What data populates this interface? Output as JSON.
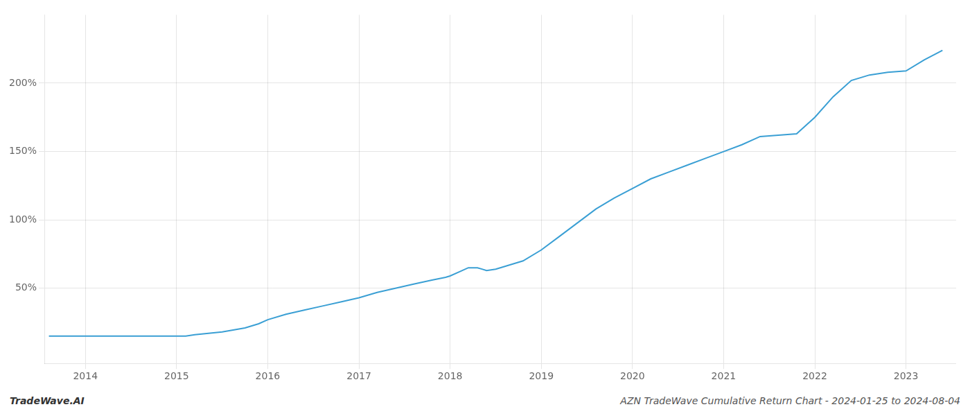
{
  "chart_data": {
    "type": "line",
    "annotations": [
      "TradeWave.AI",
      "AZN TradeWave Cumulative Return Chart - 2024-01-25 to 2024-08-04"
    ],
    "x": [
      2013.6,
      2013.7,
      2013.85,
      2014.0,
      2014.2,
      2014.5,
      2014.75,
      2015.0,
      2015.1,
      2015.2,
      2015.5,
      2015.75,
      2015.9,
      2016.0,
      2016.2,
      2016.4,
      2016.6,
      2016.8,
      2017.0,
      2017.2,
      2017.4,
      2017.6,
      2017.8,
      2017.95,
      2018.0,
      2018.1,
      2018.2,
      2018.3,
      2018.35,
      2018.4,
      2018.5,
      2018.6,
      2018.7,
      2018.8,
      2019.0,
      2019.2,
      2019.4,
      2019.6,
      2019.8,
      2020.0,
      2020.2,
      2020.4,
      2020.6,
      2020.8,
      2021.0,
      2021.2,
      2021.4,
      2021.6,
      2021.8,
      2022.0,
      2022.2,
      2022.4,
      2022.6,
      2022.8,
      2023.0,
      2023.2,
      2023.4
    ],
    "values": [
      15,
      15,
      15,
      15,
      15,
      15,
      15,
      15,
      15,
      16,
      18,
      21,
      24,
      27,
      31,
      34,
      37,
      40,
      43,
      47,
      50,
      53,
      56,
      58,
      59,
      62,
      65,
      65,
      64,
      63,
      64,
      66,
      68,
      70,
      78,
      88,
      98,
      108,
      116,
      123,
      130,
      135,
      140,
      145,
      150,
      155,
      161,
      162,
      163,
      175,
      190,
      202,
      206,
      208,
      209,
      217,
      224
    ],
    "color": "#3a9fd4",
    "xlim": [
      2013.55,
      2023.55
    ],
    "xticks": [
      2014,
      2015,
      2016,
      2017,
      2018,
      2019,
      2020,
      2021,
      2022,
      2023
    ],
    "ylim": [
      -5,
      250
    ],
    "yticks": [
      {
        "value": 50,
        "label": "50%"
      },
      {
        "value": 100,
        "label": "100%"
      },
      {
        "value": 150,
        "label": "150%"
      },
      {
        "value": 200,
        "label": "200%"
      }
    ],
    "grid": true
  }
}
